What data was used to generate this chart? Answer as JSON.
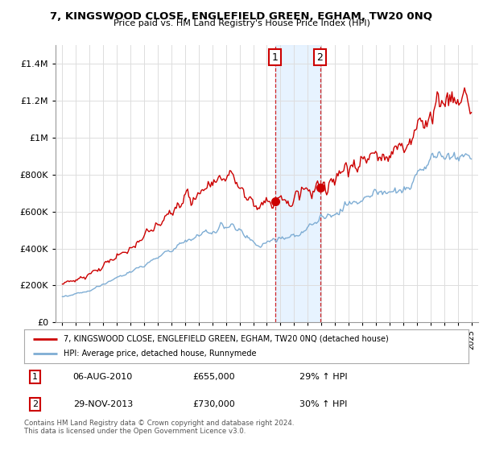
{
  "title": "7, KINGSWOOD CLOSE, ENGLEFIELD GREEN, EGHAM, TW20 0NQ",
  "subtitle": "Price paid vs. HM Land Registry's House Price Index (HPI)",
  "legend_line1": "7, KINGSWOOD CLOSE, ENGLEFIELD GREEN, EGHAM, TW20 0NQ (detached house)",
  "legend_line2": "HPI: Average price, detached house, Runnymede",
  "footnote": "Contains HM Land Registry data © Crown copyright and database right 2024.\nThis data is licensed under the Open Government Licence v3.0.",
  "annotation1_label": "1",
  "annotation1_date": "06-AUG-2010",
  "annotation1_price": "£655,000",
  "annotation1_hpi": "29% ↑ HPI",
  "annotation2_label": "2",
  "annotation2_date": "29-NOV-2013",
  "annotation2_price": "£730,000",
  "annotation2_hpi": "30% ↑ HPI",
  "sale1_x": 2010.6,
  "sale1_y": 655000,
  "sale2_x": 2013.9,
  "sale2_y": 730000,
  "property_color": "#cc0000",
  "hpi_color": "#7eadd4",
  "highlight_color": "#ddeeff",
  "vline_color": "#cc0000",
  "background_color": "#ffffff",
  "grid_color": "#dddddd",
  "ylim": [
    0,
    1500000
  ],
  "xlim": [
    1994.5,
    2025.5
  ],
  "yticks": [
    0,
    200000,
    400000,
    600000,
    800000,
    1000000,
    1200000,
    1400000
  ],
  "ytick_labels": [
    "£0",
    "£200K",
    "£400K",
    "£600K",
    "£800K",
    "£1M",
    "£1.2M",
    "£1.4M"
  ],
  "xticks": [
    1995,
    1996,
    1997,
    1998,
    1999,
    2000,
    2001,
    2002,
    2003,
    2004,
    2005,
    2006,
    2007,
    2008,
    2009,
    2010,
    2011,
    2012,
    2013,
    2014,
    2015,
    2016,
    2017,
    2018,
    2019,
    2020,
    2021,
    2022,
    2023,
    2024,
    2025
  ]
}
